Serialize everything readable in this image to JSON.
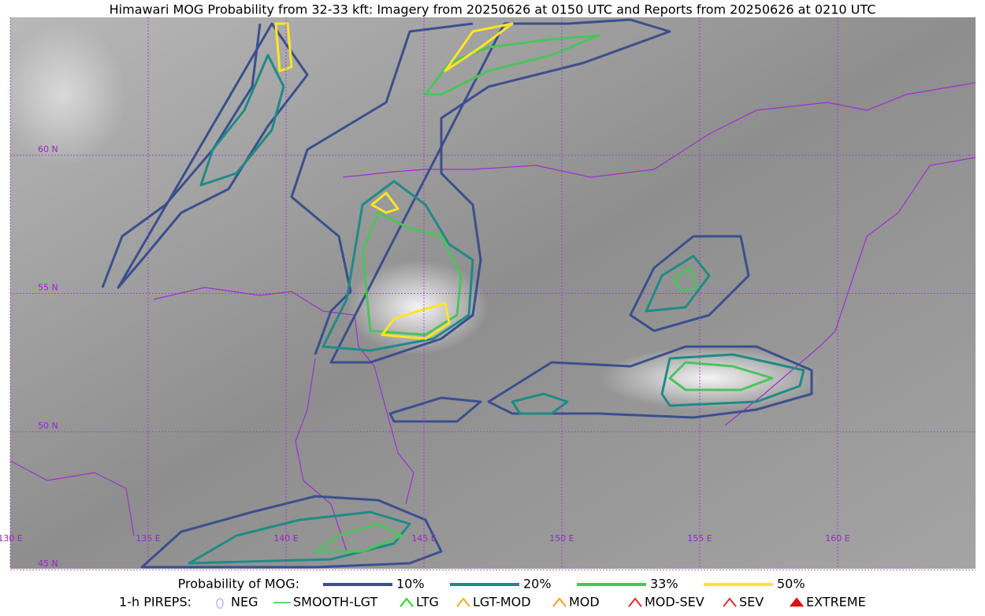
{
  "header": {
    "title": "Himawari MOG Probability from 32-33 kft: Imagery from 20250626 at 0150 UTC and Reports from 20250626 at 0210 UTC"
  },
  "map": {
    "lat_labels": [
      "60 N",
      "55 N",
      "50 N",
      "45 N"
    ],
    "lon_labels": [
      "130 E",
      "135 E",
      "140 E",
      "145 E",
      "150 E",
      "155 E",
      "160 E"
    ]
  },
  "legend": {
    "probability": {
      "label": "Probability of MOG:",
      "items": [
        {
          "label": "10%",
          "color": "#3b4f8e"
        },
        {
          "label": "20%",
          "color": "#1f8b85"
        },
        {
          "label": "33%",
          "color": "#4dc35c"
        },
        {
          "label": "50%",
          "color": "#fde524"
        }
      ]
    },
    "pireps": {
      "label": "1-h PIREPS:",
      "items": [
        {
          "label": "NEG",
          "color": "#b8b8f0"
        },
        {
          "label": "SMOOTH-LGT",
          "color": "#33cc33"
        },
        {
          "label": "LTG",
          "color": "#22dd22"
        },
        {
          "label": "LGT-MOD",
          "color": "#f0b020"
        },
        {
          "label": "MOD",
          "color": "#f0a020"
        },
        {
          "label": "MOD-SEV",
          "color": "#e03030"
        },
        {
          "label": "SEV",
          "color": "#e03030"
        },
        {
          "label": "EXTREME",
          "color": "#e01010"
        }
      ]
    }
  }
}
